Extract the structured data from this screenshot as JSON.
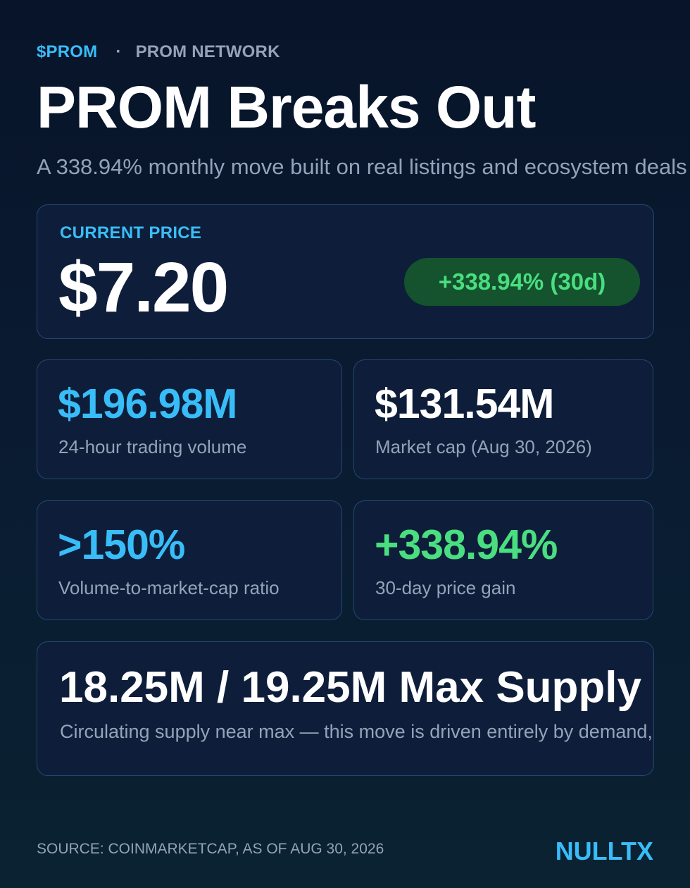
{
  "header": {
    "ticker": "$PROM",
    "separator": "·",
    "network": "PROM NETWORK",
    "title": "PROM Breaks Out",
    "subtitle": "A 338.94% monthly move built on real listings and ecosystem deals"
  },
  "price": {
    "label": "CURRENT PRICE",
    "value": "$7.20",
    "change_badge": "+338.94% (30d)"
  },
  "stats": [
    {
      "value": "$196.98M",
      "label": "24-hour trading volume",
      "color": "#38bdf8"
    },
    {
      "value": "$131.54M",
      "label": "Market cap (Aug 30, 2026)",
      "color": "#ffffff"
    },
    {
      "value": ">150%",
      "label": "Volume-to-market-cap ratio",
      "color": "#38bdf8"
    },
    {
      "value": "+338.94%",
      "label": "30-day price gain",
      "color": "#4ade80"
    }
  ],
  "supply": {
    "value": "18.25M / 19.25M Max Supply",
    "note": "Circulating supply near max — this move is driven entirely by demand, not emissions"
  },
  "footer": {
    "source": "SOURCE: COINMARKETCAP, AS OF AUG 30, 2026",
    "brand": "NULLTX"
  },
  "colors": {
    "accent": "#38bdf8",
    "positive": "#4ade80",
    "badge_bg": "#14532d",
    "card_bg": "#0e1e3a",
    "card_border": "#24476e",
    "muted": "#94a3b8"
  }
}
